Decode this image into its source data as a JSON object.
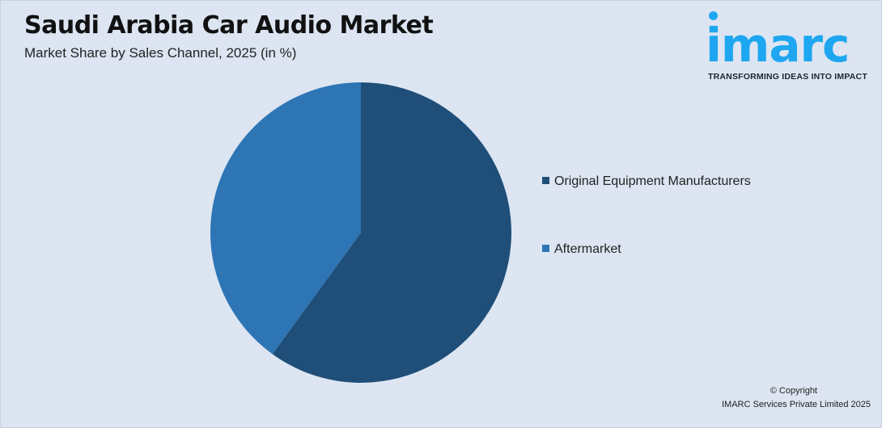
{
  "header": {
    "title": "Saudi Arabia Car Audio Market",
    "subtitle": "Market Share by Sales Channel, 2025 (in %)"
  },
  "logo": {
    "name": "imarc",
    "tagline": "TRANSFORMING IDEAS INTO IMPACT",
    "color": "#1ea7f0"
  },
  "chart_data": {
    "type": "pie",
    "title": "Saudi Arabia Car Audio Market",
    "subtitle": "Market Share by Sales Channel, 2025 (in %)",
    "categories": [
      "Original Equipment Manufacturers",
      "Aftermarket"
    ],
    "values": [
      60,
      40
    ],
    "colors": [
      "#1f4e79",
      "#2e75b6"
    ],
    "start_angle": "12 o'clock, clockwise",
    "legend_position": "right"
  },
  "footer": {
    "copyright": "© Copyright",
    "company": "IMARC Services Private Limited 2025"
  }
}
